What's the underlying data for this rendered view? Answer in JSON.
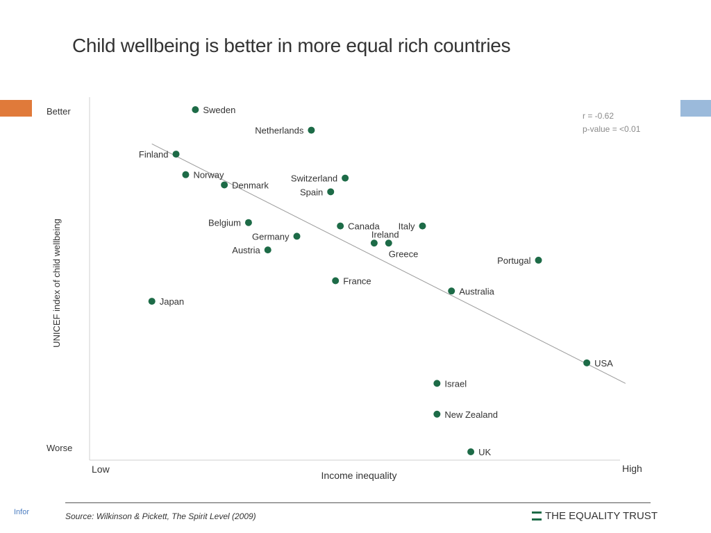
{
  "slide": {
    "footer_tag": "Infor",
    "accent_left": "#e07a3a",
    "accent_right": "#9bbadb"
  },
  "title": "Child wellbeing is better in more equal rich countries",
  "stats": {
    "r": "r = -0.62",
    "p": "p-value = <0.01"
  },
  "source": "Source: Wilkinson & Pickett, The Spirit Level (2009)",
  "brand": {
    "name": "THE EQUALITY TRUST",
    "color": "#1d6b47"
  },
  "chart_data": {
    "type": "scatter",
    "title": "Child wellbeing is better in more equal rich countries",
    "xlabel": "Income inequality",
    "ylabel": "UNICEF index of child wellbeing",
    "x_tick_labels": {
      "low": "Low",
      "high": "High"
    },
    "y_tick_labels": {
      "high": "Better",
      "low": "Worse"
    },
    "xlim": [
      0,
      100
    ],
    "ylim": [
      0,
      100
    ],
    "grid": false,
    "point_color": "#1d6b47",
    "points": [
      {
        "label": "Sweden",
        "x": 16,
        "y": 100
      },
      {
        "label": "Netherlands",
        "x": 40,
        "y": 94
      },
      {
        "label": "Finland",
        "x": 12,
        "y": 87
      },
      {
        "label": "Norway",
        "x": 14,
        "y": 81
      },
      {
        "label": "Denmark",
        "x": 22,
        "y": 78
      },
      {
        "label": "Switzerland",
        "x": 47,
        "y": 80
      },
      {
        "label": "Spain",
        "x": 44,
        "y": 76
      },
      {
        "label": "Belgium",
        "x": 27,
        "y": 67
      },
      {
        "label": "Canada",
        "x": 46,
        "y": 66
      },
      {
        "label": "Italy",
        "x": 63,
        "y": 66
      },
      {
        "label": "Germany",
        "x": 37,
        "y": 63
      },
      {
        "label": "Ireland",
        "x": 53,
        "y": 61
      },
      {
        "label": "Greece",
        "x": 56,
        "y": 61
      },
      {
        "label": "Austria",
        "x": 31,
        "y": 59
      },
      {
        "label": "Portugal",
        "x": 87,
        "y": 56
      },
      {
        "label": "France",
        "x": 45,
        "y": 50
      },
      {
        "label": "Australia",
        "x": 69,
        "y": 47
      },
      {
        "label": "Japan",
        "x": 7,
        "y": 44
      },
      {
        "label": "USA",
        "x": 97,
        "y": 26
      },
      {
        "label": "Israel",
        "x": 66,
        "y": 20
      },
      {
        "label": "New Zealand",
        "x": 66,
        "y": 11
      },
      {
        "label": "UK",
        "x": 73,
        "y": 0
      }
    ],
    "trendline": {
      "x": [
        7,
        105
      ],
      "y": [
        90,
        20
      ]
    }
  }
}
